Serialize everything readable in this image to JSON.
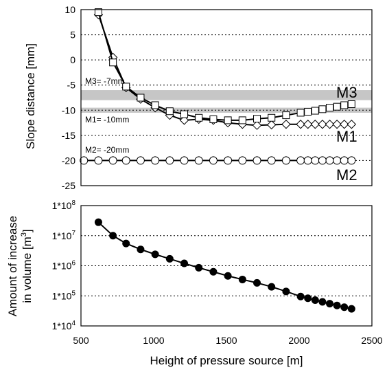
{
  "chart_data": [
    {
      "type": "line",
      "ylabel": "Slope distance [mm]",
      "ylim": [
        -25,
        10
      ],
      "xlim": [
        500,
        2500
      ],
      "yticks": [
        "10",
        "5",
        "0",
        "-5",
        "-10",
        "-15",
        "-20",
        "-25"
      ],
      "grid": "dotted horizontal lines at y ticks",
      "bands": [
        {
          "name": "M3",
          "ymin": -8,
          "ymax": -6,
          "label": "M3= -7mm"
        },
        {
          "name": "M1",
          "ymin": -10.5,
          "ymax": -9.5,
          "label": "M1= -10mm"
        }
      ],
      "threshold_labels": [
        {
          "text": "M2= -20mm",
          "y": -20
        }
      ],
      "series_labels": [
        "M3",
        "M1",
        "M2"
      ],
      "series": [
        {
          "marker": "diamond",
          "x": [
            620,
            720,
            810,
            910,
            1010,
            1110,
            1210,
            1310,
            1410,
            1510,
            1610,
            1710,
            1810,
            1910,
            2010,
            2060,
            2110,
            2160,
            2210,
            2260,
            2310,
            2360
          ],
          "y": [
            9,
            0.5,
            -5.5,
            -7.8,
            -9.5,
            -11,
            -12,
            -11.8,
            -12,
            -12.5,
            -12.8,
            -13,
            -12.9,
            -12.8,
            -12.8,
            -12.8,
            -12.8,
            -12.8,
            -12.8,
            -12.8,
            -12.8,
            -12.8
          ]
        },
        {
          "marker": "square",
          "x": [
            620,
            720,
            810,
            910,
            1010,
            1110,
            1210,
            1310,
            1410,
            1510,
            1610,
            1710,
            1810,
            1910,
            2010,
            2060,
            2110,
            2160,
            2210,
            2260,
            2310,
            2360
          ],
          "y": [
            9.5,
            -0.5,
            -5.3,
            -7.5,
            -9,
            -10.2,
            -10.8,
            -11.5,
            -11.8,
            -12,
            -12,
            -11.7,
            -11.5,
            -11,
            -10.5,
            -10.3,
            -10.1,
            -9.8,
            -9.5,
            -9.3,
            -9,
            -8.8
          ]
        },
        {
          "marker": "circle",
          "x": [
            520,
            620,
            720,
            810,
            910,
            1010,
            1110,
            1210,
            1310,
            1410,
            1510,
            1610,
            1710,
            1810,
            1910,
            2010,
            2060,
            2110,
            2160,
            2210,
            2260,
            2310,
            2360
          ],
          "y": [
            -20,
            -20,
            -20,
            -20,
            -20,
            -20,
            -20,
            -20,
            -20,
            -20,
            -20,
            -20,
            -20,
            -20,
            -20,
            -20,
            -20,
            -20,
            -20,
            -20,
            -20,
            -20,
            -20
          ]
        }
      ]
    },
    {
      "type": "line",
      "ylabel": "Amount of increase in volume [m3]",
      "ylabel_line1": "Amount of increase",
      "ylabel_line2": "in volume [m",
      "ylabel_sup": "3",
      "ylabel_end": "]",
      "xlabel": "Height of pressure source [m]",
      "yscale": "log",
      "ylim": [
        10000,
        100000000
      ],
      "xlim": [
        500,
        2500
      ],
      "yticks": [
        {
          "base": "1*10",
          "exp": "8"
        },
        {
          "base": "1*10",
          "exp": "7"
        },
        {
          "base": "1*10",
          "exp": "6"
        },
        {
          "base": "1*10",
          "exp": "5"
        },
        {
          "base": "1*10",
          "exp": "4"
        }
      ],
      "xticks": [
        "500",
        "1000",
        "1500",
        "2000",
        "2500"
      ],
      "grid": "dotted horizontal lines at y ticks",
      "series": [
        {
          "marker": "filled-circle",
          "x": [
            620,
            720,
            810,
            910,
            1010,
            1110,
            1210,
            1310,
            1410,
            1510,
            1610,
            1710,
            1810,
            1910,
            2010,
            2060,
            2110,
            2160,
            2210,
            2260,
            2310,
            2360
          ],
          "y": [
            28000000,
            10000000,
            5500000,
            3500000,
            2400000,
            1700000,
            1200000,
            860000,
            630000,
            460000,
            350000,
            270000,
            200000,
            140000,
            95000,
            83000,
            72000,
            63000,
            55000,
            48000,
            42000,
            37000
          ]
        }
      ]
    }
  ]
}
